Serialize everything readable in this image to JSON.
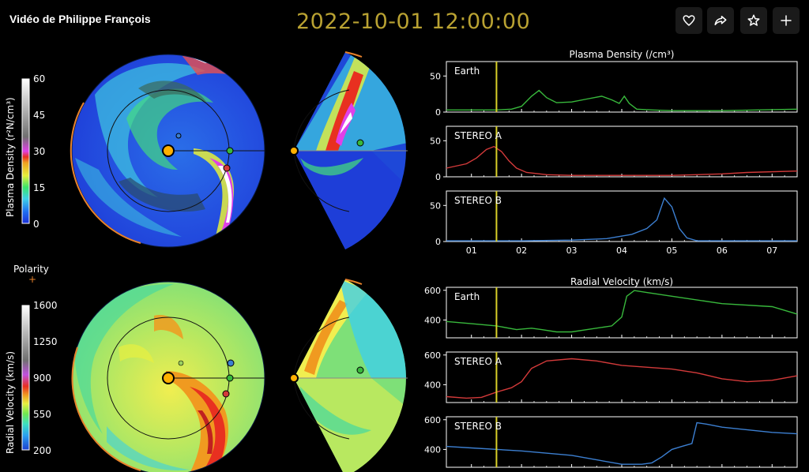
{
  "header": {
    "video_title": "Vidéo de Philippe François",
    "timestamp": "2022-10-01 12:00:00",
    "colors": {
      "timestamp": "#b9a232"
    }
  },
  "toolbar": {
    "like_icon": "heart-icon",
    "share_icon": "share-icon",
    "favorite_icon": "star-icon",
    "add_icon": "plus-icon"
  },
  "density_colorbar": {
    "label": "Plasma Density (r²N/cm³)",
    "ticks": [
      "60",
      "45",
      "30",
      "15",
      "0"
    ]
  },
  "velocity_colorbar": {
    "label": "Radial Velocity (km/s)",
    "ticks": [
      "1600",
      "1250",
      "900",
      "550",
      "200"
    ]
  },
  "polarity": {
    "label": "Polarity",
    "symbol": "+"
  },
  "chart_data": [
    {
      "type": "line",
      "title": "Plasma Density (/cm³)",
      "ylim": [
        0,
        70
      ],
      "yticks": [
        "50",
        "0"
      ],
      "xlim": [
        0.5,
        7.5
      ],
      "xticks": [
        "01",
        "02",
        "03",
        "04",
        "05",
        "06",
        "07"
      ],
      "marker_x": 1.5,
      "series": [
        {
          "name": "Earth",
          "color": "#38b83c",
          "x": [
            0.5,
            1.0,
            1.5,
            1.8,
            2.0,
            2.2,
            2.35,
            2.5,
            2.7,
            3.0,
            3.3,
            3.6,
            3.8,
            3.95,
            4.05,
            4.15,
            4.3,
            4.6,
            5.0,
            6.0,
            7.5
          ],
          "y": [
            3,
            3,
            3,
            4,
            8,
            22,
            30,
            20,
            13,
            14,
            18,
            22,
            17,
            12,
            22,
            12,
            4,
            3,
            2,
            2,
            4
          ]
        },
        {
          "name": "STEREO A",
          "color": "#d33a3a",
          "x": [
            0.5,
            0.9,
            1.1,
            1.3,
            1.45,
            1.6,
            1.75,
            1.9,
            2.1,
            2.5,
            3.0,
            4.0,
            5.0,
            6.0,
            6.5,
            7.5
          ],
          "y": [
            12,
            18,
            26,
            38,
            42,
            35,
            22,
            12,
            6,
            3,
            2,
            2,
            2,
            4,
            6,
            8
          ]
        },
        {
          "name": "STEREO B",
          "color": "#3c7fd1",
          "x": [
            0.5,
            2.0,
            3.0,
            3.7,
            4.2,
            4.5,
            4.7,
            4.85,
            5.0,
            5.15,
            5.3,
            5.5,
            6.0,
            7.5
          ],
          "y": [
            1,
            1,
            2,
            4,
            10,
            18,
            30,
            60,
            48,
            18,
            5,
            1,
            1,
            1
          ]
        }
      ]
    },
    {
      "type": "line",
      "title": "Radial Velocity (km/s)",
      "ylim": [
        280,
        620
      ],
      "yticks": [
        "600",
        "400"
      ],
      "xlim": [
        0.5,
        7.5
      ],
      "xticks": [
        "01",
        "02",
        "03",
        "04",
        "05",
        "06",
        "07"
      ],
      "marker_x": 1.5,
      "series": [
        {
          "name": "Earth",
          "color": "#38b83c",
          "x": [
            0.5,
            1.0,
            1.5,
            1.9,
            2.2,
            2.4,
            2.7,
            3.0,
            3.4,
            3.8,
            4.0,
            4.1,
            4.25,
            4.5,
            5.0,
            6.0,
            7.0,
            7.5
          ],
          "y": [
            390,
            375,
            360,
            335,
            345,
            335,
            320,
            320,
            340,
            360,
            420,
            560,
            598,
            585,
            560,
            510,
            490,
            440
          ]
        },
        {
          "name": "STEREO A",
          "color": "#d33a3a",
          "x": [
            0.5,
            0.9,
            1.2,
            1.5,
            1.8,
            2.0,
            2.2,
            2.5,
            3.0,
            3.5,
            4.0,
            5.0,
            5.5,
            6.0,
            6.5,
            7.0,
            7.5
          ],
          "y": [
            320,
            310,
            315,
            350,
            380,
            420,
            510,
            560,
            575,
            560,
            530,
            505,
            480,
            440,
            420,
            430,
            460
          ]
        },
        {
          "name": "STEREO B",
          "color": "#3c7fd1",
          "x": [
            0.5,
            1.0,
            2.0,
            3.0,
            3.5,
            4.0,
            4.4,
            4.6,
            4.8,
            5.0,
            5.2,
            5.4,
            5.5,
            5.7,
            6.0,
            7.0,
            7.5
          ],
          "y": [
            420,
            410,
            390,
            360,
            330,
            300,
            300,
            310,
            350,
            400,
            420,
            440,
            580,
            570,
            550,
            515,
            505
          ]
        }
      ]
    }
  ]
}
